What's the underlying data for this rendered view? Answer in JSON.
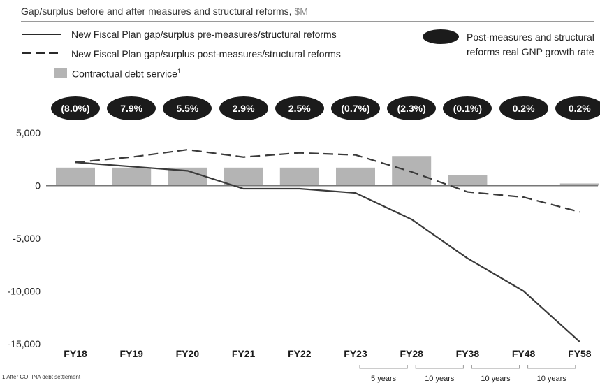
{
  "header": {
    "title": "Gap/surplus before and after measures and structural reforms, ",
    "unit": "$M"
  },
  "legend": {
    "pre": "New Fiscal Plan gap/surplus pre-measures/structural reforms",
    "post": "New Fiscal Plan gap/surplus post-measures/structural reforms",
    "debt": "Contractual debt service",
    "debt_sup": "1",
    "gnp_line1": "Post-measures and structural",
    "gnp_line2": "reforms real GNP growth rate"
  },
  "gnp_rates": [
    "(8.0%)",
    "7.9%",
    "5.5%",
    "2.9%",
    "2.5%",
    "(0.7%)",
    "(2.3%)",
    "(0.1%)",
    "0.2%",
    "0.2%"
  ],
  "chart_data": {
    "type": "bar+line",
    "categories": [
      "FY18",
      "FY19",
      "FY20",
      "FY21",
      "FY22",
      "FY23",
      "FY28",
      "FY38",
      "FY48",
      "FY58"
    ],
    "ylim": [
      -15000,
      5000
    ],
    "yticks": [
      5000,
      0,
      -5000,
      -10000,
      -15000
    ],
    "ytick_labels": [
      "5,000",
      "0",
      "-5,000",
      "-10,000",
      "-15,000"
    ],
    "series": [
      {
        "name": "Contractual debt service",
        "type": "bar",
        "values": [
          1700,
          1700,
          1700,
          1700,
          1700,
          1700,
          2800,
          1000,
          0,
          200
        ]
      },
      {
        "name": "New Fiscal Plan gap/surplus pre-measures/structural reforms",
        "type": "line",
        "style": "solid",
        "values": [
          2200,
          1800,
          1400,
          -300,
          -300,
          -700,
          -3200,
          -6900,
          -10000,
          -14800
        ]
      },
      {
        "name": "New Fiscal Plan gap/surplus post-measures/structural reforms",
        "type": "line",
        "style": "dashed",
        "values": [
          2200,
          2700,
          3400,
          2700,
          3100,
          2900,
          1300,
          -600,
          -1100,
          -2500
        ]
      }
    ],
    "interval_labels": [
      "5 years",
      "10 years",
      "10 years",
      "10 years"
    ],
    "colors": {
      "bar": "#b4b4b4",
      "line": "#3a3a3a",
      "zero_line": "#777777",
      "pill": "#1b1b1b"
    }
  },
  "footnote": "1 After COFINA debt settlement"
}
